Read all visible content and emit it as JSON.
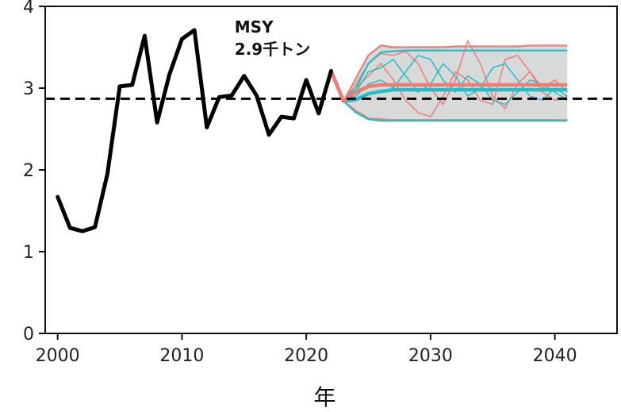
{
  "chart_data": {
    "type": "line",
    "xlabel": "年",
    "ylabel": "",
    "xlim": [
      1999,
      2045
    ],
    "ylim": [
      0,
      4
    ],
    "x_ticks": [
      2000,
      2010,
      2020,
      2030,
      2040
    ],
    "y_ticks": [
      0,
      1,
      2,
      3,
      4
    ],
    "grid": false,
    "reference_line": {
      "y": 2.87,
      "style": "dashed",
      "color": "#000000"
    },
    "annotation": {
      "line1": "MSY",
      "line2": "2.9千トン",
      "x": 2015,
      "y": 3.6
    },
    "observed": {
      "color": "#000000",
      "x": [
        2000,
        2001,
        2002,
        2003,
        2004,
        2005,
        2006,
        2007,
        2008,
        2009,
        2010,
        2011,
        2012,
        2013,
        2014,
        2015,
        2016,
        2017,
        2018,
        2019,
        2020,
        2021,
        2022
      ],
      "y": [
        1.67,
        1.29,
        1.25,
        1.3,
        1.95,
        3.02,
        3.04,
        3.64,
        2.58,
        3.17,
        3.6,
        3.71,
        2.52,
        2.89,
        2.91,
        3.15,
        2.91,
        2.43,
        2.65,
        2.63,
        3.1,
        2.69,
        3.21
      ]
    },
    "bands": [
      {
        "color": "#f07b74",
        "fill": "#d8dada",
        "x": [
          2022,
          2023,
          2024,
          2025,
          2026,
          2027,
          2028,
          2029,
          2030,
          2031,
          2032,
          2033,
          2034,
          2035,
          2036,
          2037,
          2038,
          2039,
          2040,
          2041
        ],
        "upper": [
          3.21,
          2.84,
          3.12,
          3.4,
          3.52,
          3.5,
          3.5,
          3.5,
          3.5,
          3.5,
          3.51,
          3.51,
          3.51,
          3.51,
          3.51,
          3.51,
          3.52,
          3.52,
          3.52,
          3.52
        ],
        "median": [
          3.21,
          2.84,
          2.95,
          3.02,
          3.04,
          3.04,
          3.04,
          3.04,
          3.04,
          3.04,
          3.04,
          3.04,
          3.04,
          3.04,
          3.04,
          3.04,
          3.04,
          3.04,
          3.04,
          3.04
        ],
        "lower": [
          3.21,
          2.84,
          2.72,
          2.63,
          2.62,
          2.61,
          2.61,
          2.61,
          2.61,
          2.61,
          2.61,
          2.61,
          2.61,
          2.61,
          2.61,
          2.61,
          2.61,
          2.61,
          2.61,
          2.61
        ]
      },
      {
        "color": "#22bfc8",
        "x": [
          2022,
          2023,
          2024,
          2025,
          2026,
          2027,
          2028,
          2029,
          2030,
          2031,
          2032,
          2033,
          2034,
          2035,
          2036,
          2037,
          2038,
          2039,
          2040,
          2041
        ],
        "upper": [
          3.21,
          2.84,
          3.0,
          3.3,
          3.44,
          3.45,
          3.46,
          3.46,
          3.46,
          3.46,
          3.46,
          3.46,
          3.46,
          3.46,
          3.46,
          3.46,
          3.46,
          3.46,
          3.46,
          3.46
        ],
        "median": [
          3.21,
          2.84,
          2.86,
          2.93,
          2.96,
          2.98,
          2.98,
          2.98,
          2.98,
          2.98,
          2.98,
          2.98,
          2.98,
          2.98,
          2.98,
          2.98,
          2.98,
          2.98,
          2.98,
          2.98
        ],
        "lower": [
          3.21,
          2.84,
          2.7,
          2.62,
          2.6,
          2.6,
          2.6,
          2.6,
          2.6,
          2.6,
          2.6,
          2.6,
          2.6,
          2.6,
          2.6,
          2.6,
          2.6,
          2.6,
          2.6,
          2.6
        ]
      }
    ],
    "sample_paths": [
      {
        "color": "#f07b74",
        "x": [
          2023,
          2024,
          2025,
          2026,
          2027,
          2028,
          2029,
          2030,
          2031,
          2032,
          2033,
          2034,
          2035,
          2036,
          2037,
          2038,
          2039,
          2040,
          2041
        ],
        "y": [
          2.84,
          3.05,
          3.3,
          3.42,
          3.4,
          3.45,
          3.3,
          3.0,
          2.8,
          3.1,
          3.58,
          3.3,
          2.9,
          2.75,
          3.05,
          3.2,
          3.0,
          3.1,
          2.95
        ]
      },
      {
        "color": "#f07b74",
        "x": [
          2023,
          2024,
          2025,
          2026,
          2027,
          2028,
          2029,
          2030,
          2031,
          2032,
          2033,
          2034,
          2035,
          2036,
          2037,
          2038,
          2039,
          2040,
          2041
        ],
        "y": [
          2.84,
          3.0,
          3.15,
          3.3,
          3.1,
          2.85,
          2.7,
          2.65,
          2.9,
          3.2,
          3.1,
          2.85,
          2.8,
          3.35,
          3.4,
          3.2,
          2.95,
          2.85,
          2.9
        ]
      },
      {
        "color": "#22bfc8",
        "x": [
          2023,
          2024,
          2025,
          2026,
          2027,
          2028,
          2029,
          2030,
          2031,
          2032,
          2033,
          2034,
          2035,
          2036,
          2037,
          2038,
          2039,
          2040,
          2041
        ],
        "y": [
          2.84,
          2.95,
          3.2,
          3.25,
          3.35,
          3.15,
          2.95,
          3.05,
          3.3,
          3.15,
          2.9,
          3.0,
          3.25,
          3.3,
          3.1,
          2.9,
          2.85,
          3.0,
          2.9
        ]
      },
      {
        "color": "#22bfc8",
        "x": [
          2023,
          2024,
          2025,
          2026,
          2027,
          2028,
          2029,
          2030,
          2031,
          2032,
          2033,
          2034,
          2035,
          2036,
          2037,
          2038,
          2039,
          2040,
          2041
        ],
        "y": [
          2.84,
          2.9,
          3.05,
          3.1,
          3.0,
          3.2,
          3.4,
          3.35,
          3.1,
          2.95,
          3.15,
          3.05,
          2.85,
          2.8,
          2.95,
          3.1,
          3.05,
          2.95,
          2.85
        ]
      }
    ]
  }
}
